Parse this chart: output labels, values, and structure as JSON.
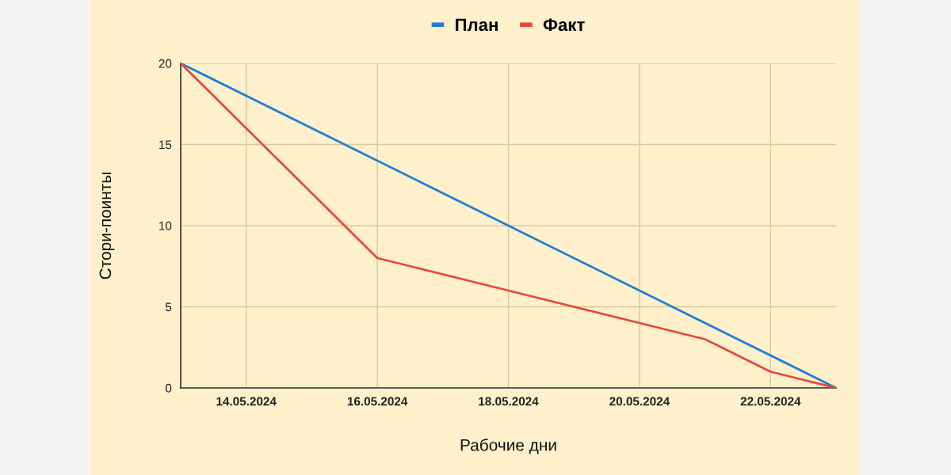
{
  "chart_data": {
    "type": "line",
    "xlabel": "Рабочие дни",
    "ylabel": "Стори-поинты",
    "series": [
      {
        "name": "План",
        "color": "#1e7fd8",
        "x": [
          "2024-05-13",
          "2024-05-23"
        ],
        "values": [
          20,
          0
        ]
      },
      {
        "name": "Факт",
        "color": "#e8483a",
        "x": [
          "2024-05-13",
          "2024-05-14",
          "2024-05-16",
          "2024-05-18",
          "2024-05-20",
          "2024-05-21",
          "2024-05-22",
          "2024-05-23"
        ],
        "values": [
          20,
          16,
          8,
          6,
          4,
          3,
          1,
          0
        ]
      }
    ],
    "xlim": [
      "2024-05-13",
      "2024-05-23"
    ],
    "xticks": [
      {
        "value": "2024-05-14",
        "label": "14.05.2024"
      },
      {
        "value": "2024-05-16",
        "label": "16.05.2024"
      },
      {
        "value": "2024-05-18",
        "label": "18.05.2024"
      },
      {
        "value": "2024-05-20",
        "label": "20.05.2024"
      },
      {
        "value": "2024-05-22",
        "label": "22.05.2024"
      }
    ],
    "ylim": [
      0,
      20
    ],
    "yticks": [
      0,
      5,
      10,
      15,
      20
    ],
    "grid": true,
    "legend": "top",
    "marker": "none",
    "line_style": "solid"
  }
}
